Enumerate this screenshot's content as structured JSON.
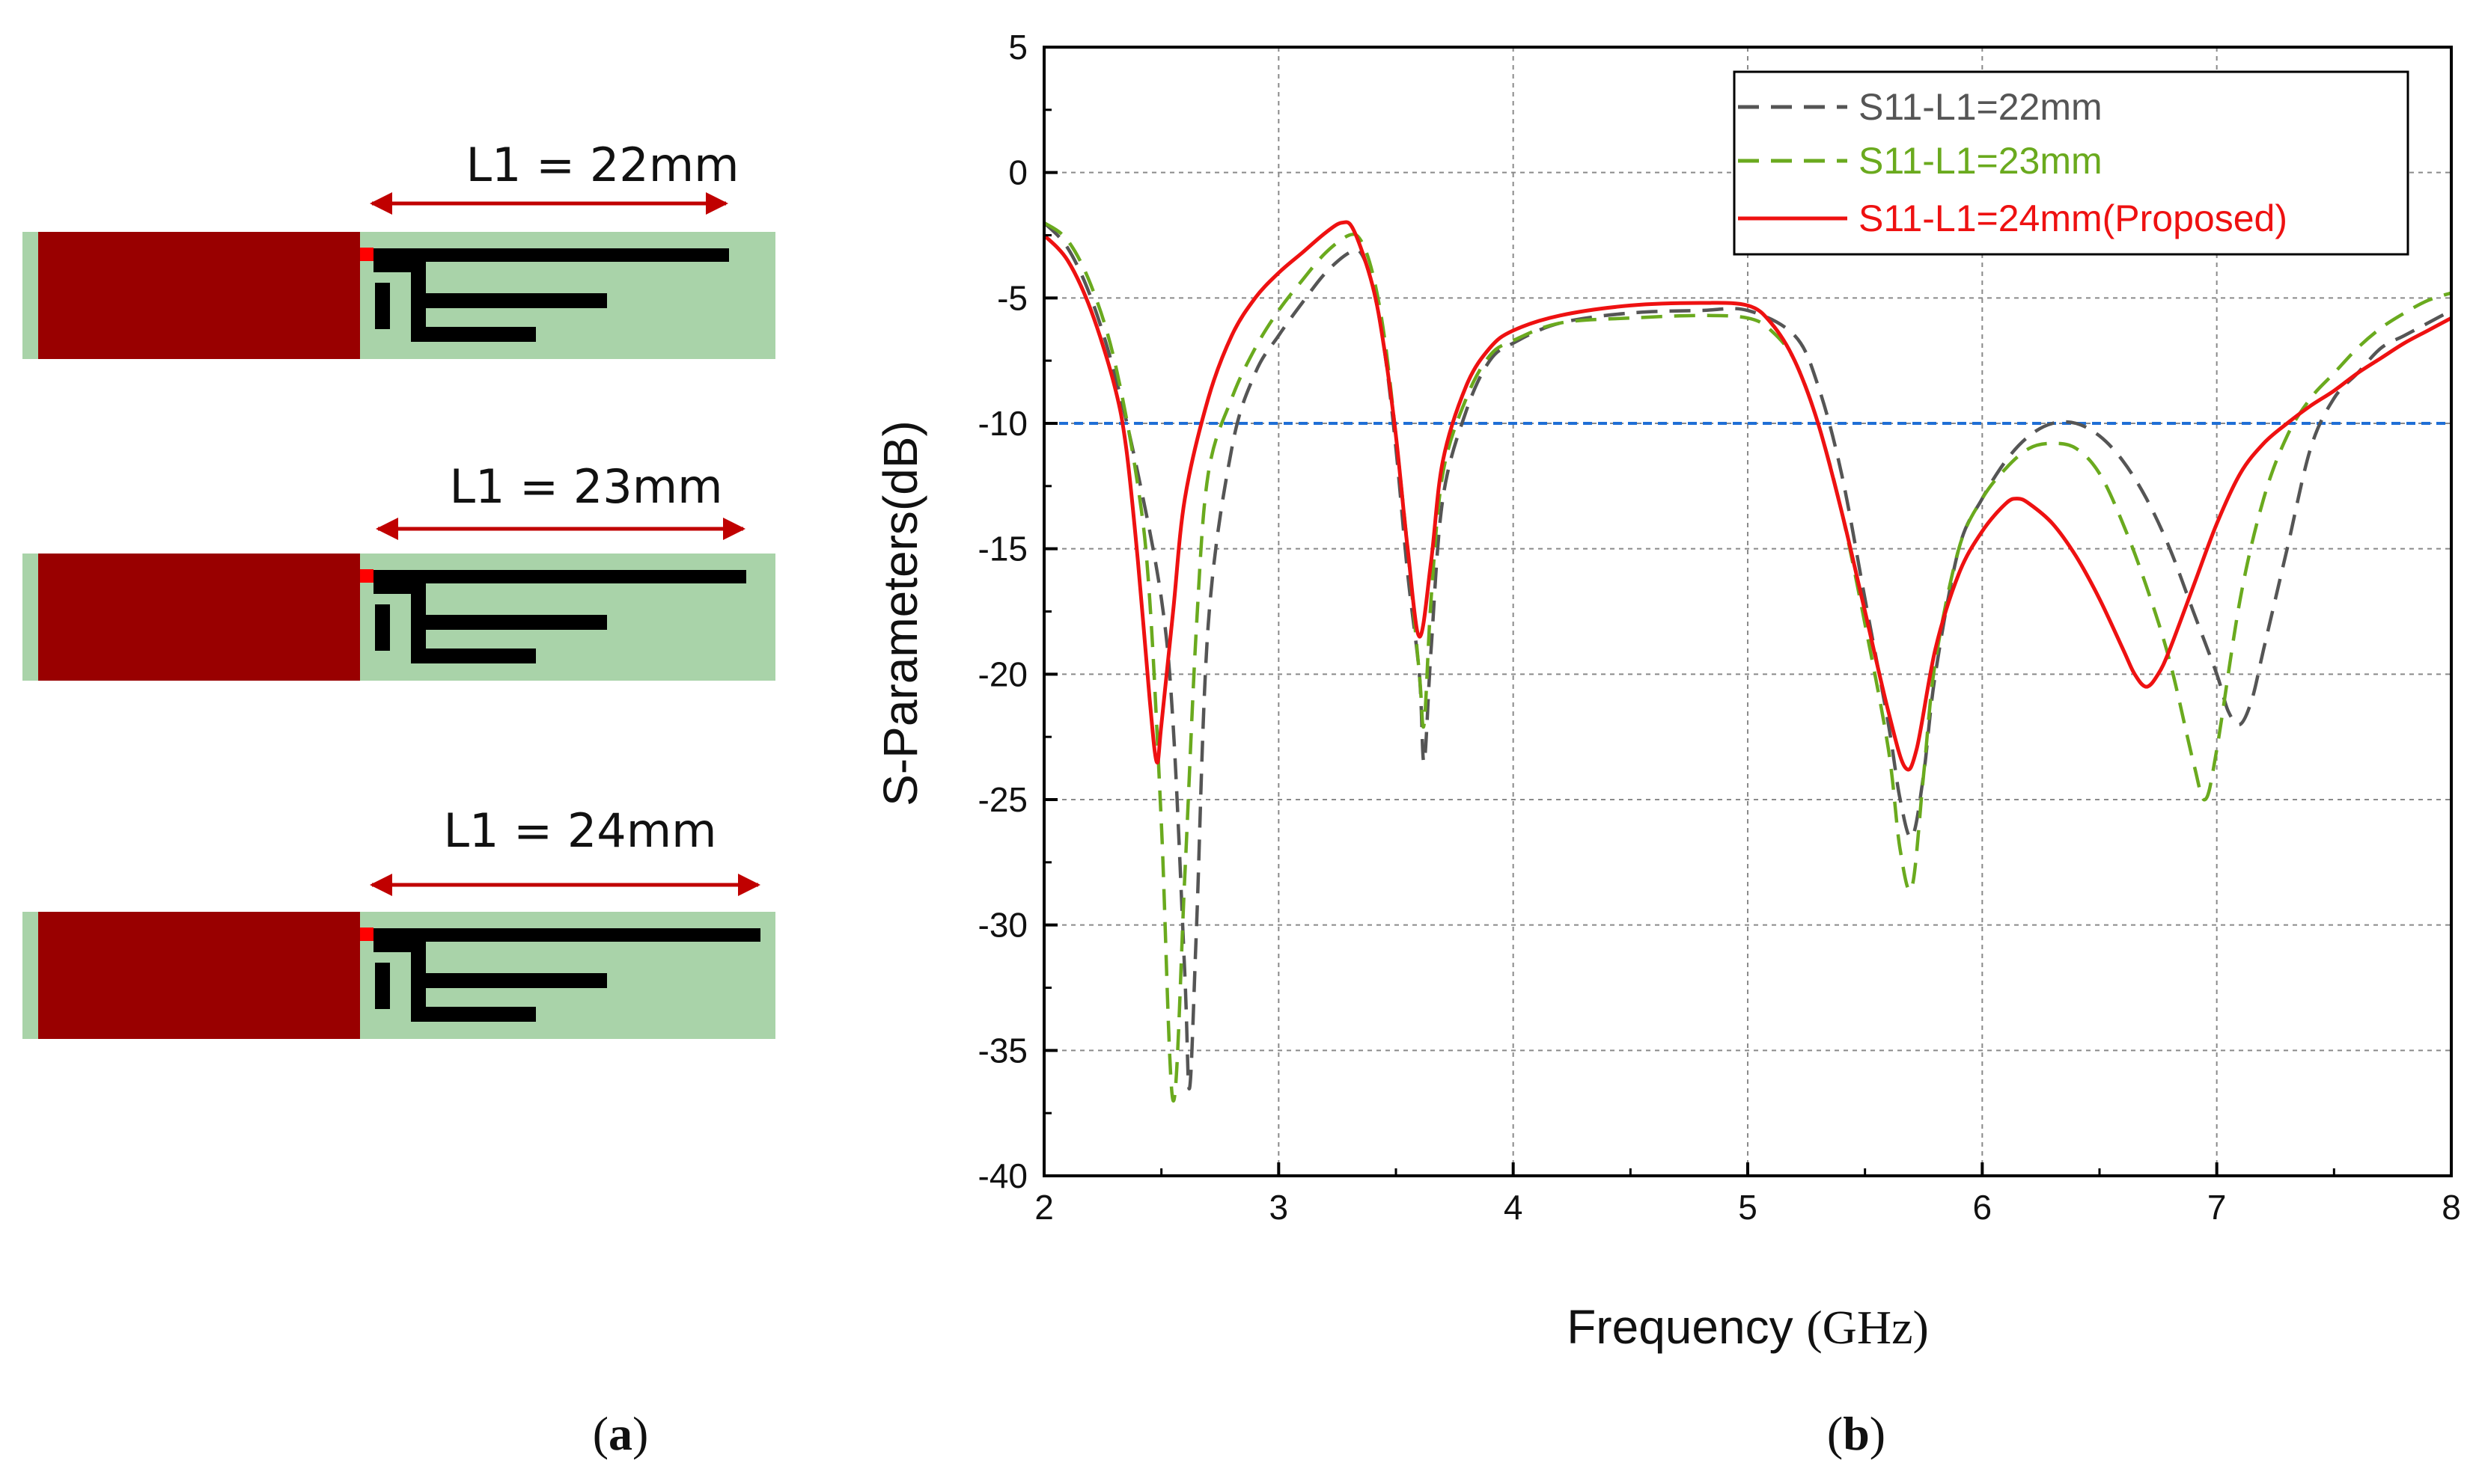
{
  "panel_a": {
    "caption_open": "(",
    "caption_letter": "a",
    "caption_close": ")",
    "variants": [
      {
        "dimension_label": "L1 = 22mm",
        "length_mm": 22
      },
      {
        "dimension_label": "L1 = 23mm",
        "length_mm": 23
      },
      {
        "dimension_label": "L1 = 24mm",
        "length_mm": 24
      }
    ],
    "colors": {
      "ground": "#990000",
      "substrate": "#a9d3a9",
      "trace": "#000000",
      "feed": "#ff0000",
      "dimension_arrow": "#c00000"
    }
  },
  "panel_b": {
    "caption_open": "(",
    "caption_letter": "b",
    "caption_close": ")"
  },
  "chart_data": {
    "type": "line",
    "title": "",
    "xlabel_main": "Frequency ",
    "xlabel_unit": "(GHz)",
    "ylabel": "S-Parameters(dB)",
    "xlim": [
      2,
      8
    ],
    "ylim": [
      -40,
      5
    ],
    "x_ticks": [
      2,
      3,
      4,
      5,
      6,
      7,
      8
    ],
    "y_ticks": [
      5,
      0,
      -5,
      -10,
      -15,
      -20,
      -25,
      -30,
      -35,
      -40
    ],
    "grid": true,
    "legend_position": "top-right",
    "reference_line": {
      "y": -10,
      "color": "#1f6fd6",
      "style": "dashed"
    },
    "series": [
      {
        "name": "S11-L1=22mm",
        "color": "#555555",
        "style": "dashed",
        "points": [
          [
            2.0,
            -2.0
          ],
          [
            2.1,
            -3.0
          ],
          [
            2.2,
            -5.0
          ],
          [
            2.3,
            -8.0
          ],
          [
            2.4,
            -12.0
          ],
          [
            2.5,
            -17.0
          ],
          [
            2.55,
            -22.0
          ],
          [
            2.6,
            -32.0
          ],
          [
            2.62,
            -36.5
          ],
          [
            2.65,
            -30.0
          ],
          [
            2.7,
            -18.0
          ],
          [
            2.8,
            -11.0
          ],
          [
            2.9,
            -8.0
          ],
          [
            3.0,
            -6.5
          ],
          [
            3.1,
            -5.2
          ],
          [
            3.2,
            -4.0
          ],
          [
            3.3,
            -3.2
          ],
          [
            3.35,
            -3.2
          ],
          [
            3.4,
            -4.5
          ],
          [
            3.45,
            -7.0
          ],
          [
            3.5,
            -11.0
          ],
          [
            3.55,
            -16.0
          ],
          [
            3.6,
            -20.0
          ],
          [
            3.62,
            -23.5
          ],
          [
            3.65,
            -19.0
          ],
          [
            3.7,
            -13.0
          ],
          [
            3.8,
            -9.5
          ],
          [
            3.9,
            -7.5
          ],
          [
            4.0,
            -6.8
          ],
          [
            4.2,
            -6.0
          ],
          [
            4.5,
            -5.6
          ],
          [
            4.8,
            -5.5
          ],
          [
            5.0,
            -5.5
          ],
          [
            5.2,
            -6.5
          ],
          [
            5.3,
            -8.5
          ],
          [
            5.4,
            -12.0
          ],
          [
            5.5,
            -17.0
          ],
          [
            5.6,
            -22.0
          ],
          [
            5.65,
            -25.0
          ],
          [
            5.7,
            -26.5
          ],
          [
            5.75,
            -24.0
          ],
          [
            5.8,
            -20.0
          ],
          [
            5.9,
            -15.0
          ],
          [
            6.0,
            -13.0
          ],
          [
            6.1,
            -11.5
          ],
          [
            6.2,
            -10.5
          ],
          [
            6.3,
            -10.0
          ],
          [
            6.4,
            -10.0
          ],
          [
            6.5,
            -10.5
          ],
          [
            6.6,
            -11.5
          ],
          [
            6.7,
            -13.0
          ],
          [
            6.8,
            -15.0
          ],
          [
            6.9,
            -17.5
          ],
          [
            7.0,
            -20.0
          ],
          [
            7.05,
            -21.5
          ],
          [
            7.1,
            -22.0
          ],
          [
            7.15,
            -21.0
          ],
          [
            7.2,
            -19.0
          ],
          [
            7.3,
            -15.0
          ],
          [
            7.4,
            -11.0
          ],
          [
            7.5,
            -9.0
          ],
          [
            7.6,
            -8.0
          ],
          [
            7.7,
            -7.0
          ],
          [
            7.8,
            -6.5
          ],
          [
            7.9,
            -6.0
          ],
          [
            8.0,
            -5.5
          ]
        ]
      },
      {
        "name": "S11-L1=23mm",
        "color": "#6aaa1e",
        "style": "dashed",
        "points": [
          [
            2.0,
            -2.0
          ],
          [
            2.1,
            -2.7
          ],
          [
            2.2,
            -4.5
          ],
          [
            2.3,
            -7.5
          ],
          [
            2.4,
            -12.5
          ],
          [
            2.45,
            -17.0
          ],
          [
            2.5,
            -26.0
          ],
          [
            2.55,
            -37.0
          ],
          [
            2.6,
            -28.0
          ],
          [
            2.65,
            -18.0
          ],
          [
            2.7,
            -12.0
          ],
          [
            2.8,
            -9.0
          ],
          [
            2.9,
            -7.0
          ],
          [
            3.0,
            -5.5
          ],
          [
            3.1,
            -4.3
          ],
          [
            3.2,
            -3.2
          ],
          [
            3.3,
            -2.5
          ],
          [
            3.35,
            -2.7
          ],
          [
            3.4,
            -4.0
          ],
          [
            3.45,
            -6.5
          ],
          [
            3.5,
            -10.5
          ],
          [
            3.55,
            -15.0
          ],
          [
            3.6,
            -20.0
          ],
          [
            3.62,
            -22.0
          ],
          [
            3.65,
            -17.0
          ],
          [
            3.7,
            -12.0
          ],
          [
            3.8,
            -9.0
          ],
          [
            3.9,
            -7.3
          ],
          [
            4.0,
            -6.7
          ],
          [
            4.2,
            -6.0
          ],
          [
            4.5,
            -5.8
          ],
          [
            4.8,
            -5.7
          ],
          [
            5.0,
            -5.8
          ],
          [
            5.1,
            -6.3
          ],
          [
            5.2,
            -7.5
          ],
          [
            5.3,
            -10.0
          ],
          [
            5.4,
            -13.5
          ],
          [
            5.5,
            -18.0
          ],
          [
            5.6,
            -23.0
          ],
          [
            5.65,
            -27.0
          ],
          [
            5.7,
            -28.5
          ],
          [
            5.75,
            -24.0
          ],
          [
            5.8,
            -19.5
          ],
          [
            5.9,
            -15.0
          ],
          [
            6.0,
            -13.0
          ],
          [
            6.1,
            -11.8
          ],
          [
            6.2,
            -11.0
          ],
          [
            6.3,
            -10.8
          ],
          [
            6.4,
            -11.0
          ],
          [
            6.5,
            -12.0
          ],
          [
            6.6,
            -14.0
          ],
          [
            6.7,
            -16.5
          ],
          [
            6.8,
            -19.5
          ],
          [
            6.9,
            -23.5
          ],
          [
            6.95,
            -25.0
          ],
          [
            7.0,
            -23.0
          ],
          [
            7.1,
            -17.0
          ],
          [
            7.2,
            -13.0
          ],
          [
            7.3,
            -10.5
          ],
          [
            7.4,
            -9.0
          ],
          [
            7.5,
            -8.0
          ],
          [
            7.6,
            -7.0
          ],
          [
            7.7,
            -6.2
          ],
          [
            7.8,
            -5.6
          ],
          [
            7.9,
            -5.1
          ],
          [
            8.0,
            -4.8
          ]
        ]
      },
      {
        "name": "S11-L1=24mm(Proposed)",
        "color": "#ee1111",
        "style": "solid",
        "points": [
          [
            2.0,
            -2.5
          ],
          [
            2.1,
            -3.5
          ],
          [
            2.2,
            -5.5
          ],
          [
            2.3,
            -8.5
          ],
          [
            2.35,
            -11.0
          ],
          [
            2.4,
            -15.5
          ],
          [
            2.45,
            -21.0
          ],
          [
            2.48,
            -23.5
          ],
          [
            2.5,
            -22.0
          ],
          [
            2.55,
            -17.5
          ],
          [
            2.6,
            -13.0
          ],
          [
            2.7,
            -9.0
          ],
          [
            2.8,
            -6.5
          ],
          [
            2.9,
            -5.0
          ],
          [
            3.0,
            -4.0
          ],
          [
            3.1,
            -3.2
          ],
          [
            3.2,
            -2.4
          ],
          [
            3.27,
            -2.0
          ],
          [
            3.32,
            -2.3
          ],
          [
            3.4,
            -4.5
          ],
          [
            3.45,
            -7.0
          ],
          [
            3.5,
            -10.5
          ],
          [
            3.55,
            -15.0
          ],
          [
            3.6,
            -18.5
          ],
          [
            3.65,
            -15.5
          ],
          [
            3.7,
            -11.5
          ],
          [
            3.8,
            -8.5
          ],
          [
            3.9,
            -7.0
          ],
          [
            4.0,
            -6.3
          ],
          [
            4.2,
            -5.7
          ],
          [
            4.5,
            -5.3
          ],
          [
            4.8,
            -5.2
          ],
          [
            5.0,
            -5.3
          ],
          [
            5.1,
            -6.0
          ],
          [
            5.2,
            -7.5
          ],
          [
            5.3,
            -10.0
          ],
          [
            5.4,
            -13.5
          ],
          [
            5.5,
            -17.5
          ],
          [
            5.6,
            -21.5
          ],
          [
            5.67,
            -23.7
          ],
          [
            5.72,
            -23.0
          ],
          [
            5.8,
            -19.0
          ],
          [
            5.9,
            -16.0
          ],
          [
            6.0,
            -14.3
          ],
          [
            6.1,
            -13.2
          ],
          [
            6.15,
            -13.0
          ],
          [
            6.2,
            -13.2
          ],
          [
            6.3,
            -14.0
          ],
          [
            6.4,
            -15.3
          ],
          [
            6.5,
            -17.0
          ],
          [
            6.6,
            -19.0
          ],
          [
            6.65,
            -20.0
          ],
          [
            6.7,
            -20.5
          ],
          [
            6.75,
            -20.0
          ],
          [
            6.8,
            -19.0
          ],
          [
            6.9,
            -16.5
          ],
          [
            7.0,
            -14.0
          ],
          [
            7.1,
            -12.0
          ],
          [
            7.2,
            -10.8
          ],
          [
            7.3,
            -10.0
          ],
          [
            7.4,
            -9.3
          ],
          [
            7.5,
            -8.7
          ],
          [
            7.6,
            -8.0
          ],
          [
            7.7,
            -7.4
          ],
          [
            7.8,
            -6.8
          ],
          [
            7.9,
            -6.3
          ],
          [
            8.0,
            -5.8
          ]
        ]
      }
    ]
  }
}
